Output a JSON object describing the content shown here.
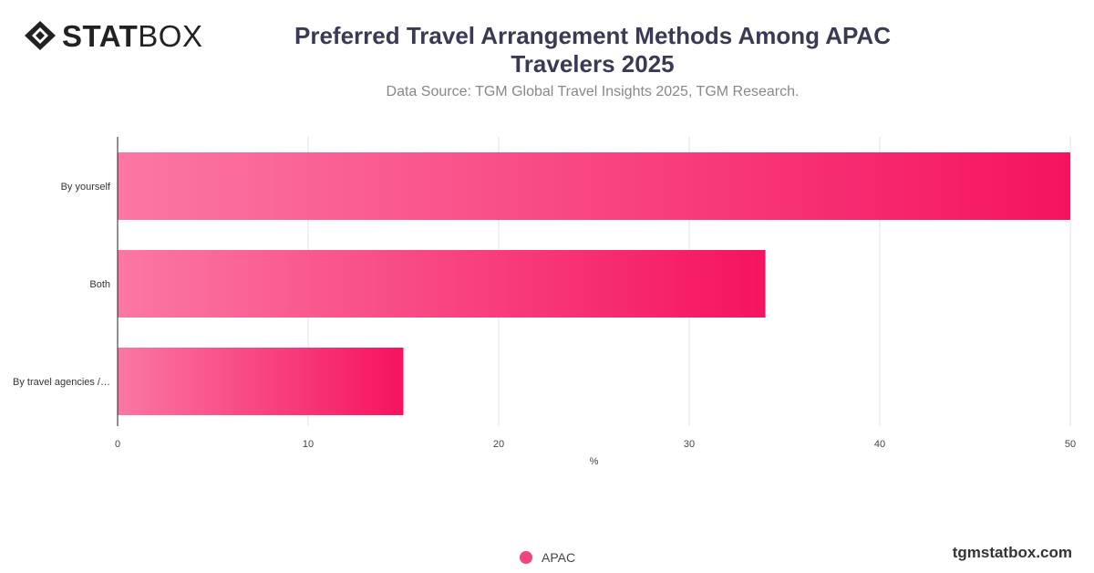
{
  "header": {
    "logo_bold": "STAT",
    "logo_light": "BOX",
    "title_lines": [
      "Preferred Travel Arrangement Methods Among APAC",
      "Travelers 2025"
    ],
    "subtitle": "Data Source: TGM Global Travel Insights 2025, TGM Research."
  },
  "colors": {
    "bar_start": "#fb77a4",
    "bar_end": "#f51360",
    "legend": "#f0457e"
  },
  "chart_data": {
    "type": "bar",
    "orientation": "horizontal",
    "categories": [
      "By yourself",
      "Both",
      "By travel agencies /…"
    ],
    "series": [
      {
        "name": "APAC",
        "values": [
          50,
          34,
          15
        ]
      }
    ],
    "xlabel": "%",
    "ylabel": "",
    "xlim": [
      0,
      50
    ],
    "xticks": [
      0,
      10,
      20,
      30,
      40,
      50
    ],
    "grid": true,
    "legend_position": "bottom-center"
  },
  "legend": {
    "label": "APAC"
  },
  "footer": {
    "watermark": "tgmstatbox.com"
  }
}
